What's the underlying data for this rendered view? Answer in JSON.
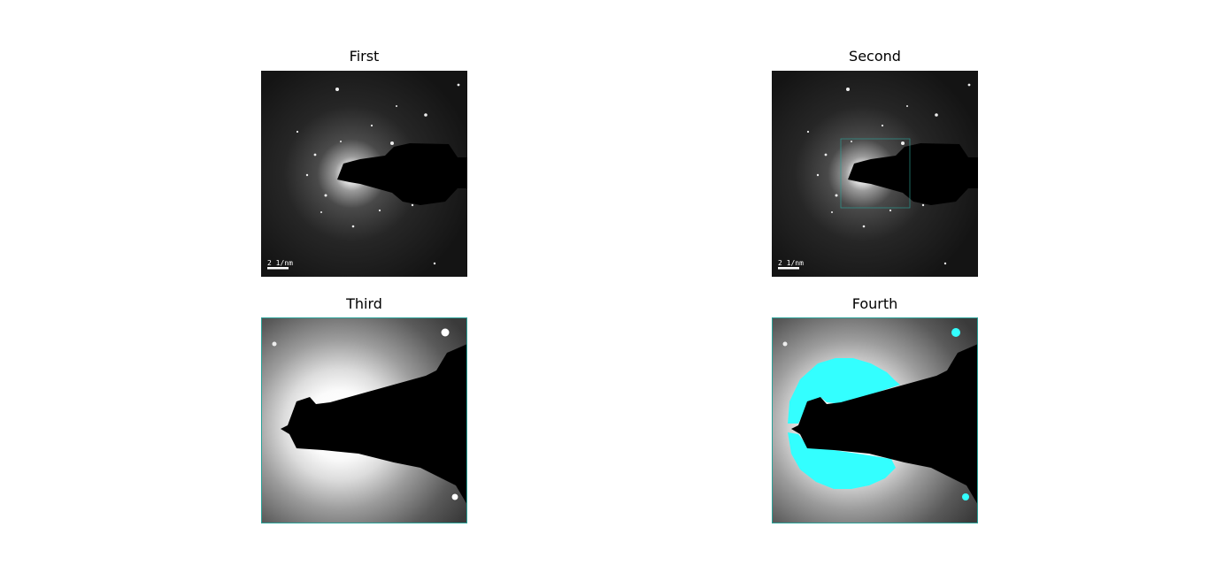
{
  "panels": [
    {
      "title": "First",
      "scale_label": "2 1/nm"
    },
    {
      "title": "Second",
      "scale_label": "2 1/nm"
    },
    {
      "title": "Third"
    },
    {
      "title": "Fourth"
    }
  ],
  "colors": {
    "roi_outline": "#2aa198",
    "mask_overlay": "#33ffff"
  }
}
